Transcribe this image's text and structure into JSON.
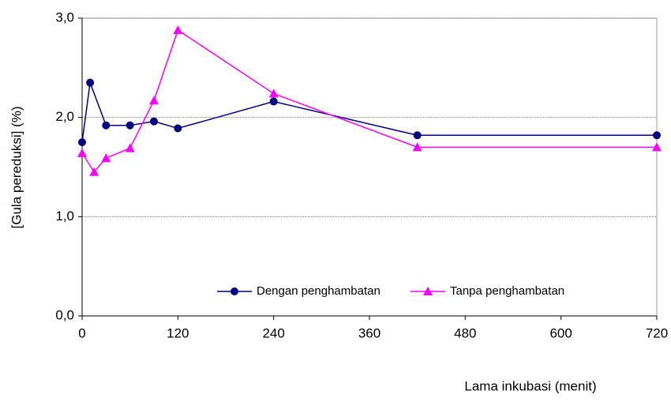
{
  "chart_data": {
    "type": "line",
    "x_label": "Lama inkubasi (menit)",
    "y_label": "[Gula pereduksi] (%)",
    "xlim": [
      0,
      720
    ],
    "xticks": [
      0,
      120,
      240,
      360,
      480,
      600,
      720
    ],
    "ylim": [
      0,
      3
    ],
    "yticks": [
      {
        "value": 0,
        "label": "0,0"
      },
      {
        "value": 1,
        "label": "1,0"
      },
      {
        "value": 2,
        "label": "2,0"
      },
      {
        "value": 3,
        "label": "3,0"
      }
    ],
    "grid": true,
    "legend": "bottom",
    "series": [
      {
        "name": "Dengan penghambatan",
        "color": "#000080",
        "marker": "circle",
        "x": [
          0,
          10,
          30,
          60,
          90,
          120,
          240,
          420,
          720
        ],
        "values": [
          1.75,
          2.35,
          1.92,
          1.92,
          1.96,
          1.89,
          2.16,
          1.82,
          1.82
        ]
      },
      {
        "name": "Tanpa penghambatan",
        "color": "#ff00ff",
        "marker": "triangle",
        "x": [
          0,
          15,
          30,
          60,
          90,
          120,
          240,
          420,
          720
        ],
        "values": [
          1.64,
          1.45,
          1.59,
          1.69,
          2.17,
          2.88,
          2.24,
          1.7,
          1.7
        ]
      }
    ]
  }
}
